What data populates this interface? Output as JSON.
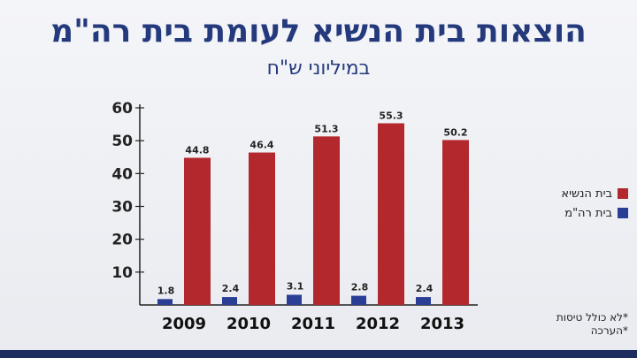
{
  "title": "הוצאות בית הנשיא לעומת בית רה\"מ",
  "subtitle": "במיליוני ש\"ח",
  "colors": {
    "primary_series": "#b3282d",
    "secondary_series": "#2b3e96",
    "text": "#253a7c"
  },
  "legend": [
    {
      "label": "בית הנשיא",
      "color": "#b3282d"
    },
    {
      "label": "בית רה\"מ",
      "color": "#2b3e96"
    }
  ],
  "notes": [
    "*לא כולל טיסות",
    "*הערכה"
  ],
  "chart_data": {
    "type": "bar",
    "categories": [
      "2009",
      "2010",
      "2011",
      "2012",
      "2013"
    ],
    "series": [
      {
        "name": "בית רה\"מ",
        "values": [
          1.8,
          2.4,
          3.1,
          2.8,
          2.4
        ]
      },
      {
        "name": "בית הנשיא",
        "values": [
          44.8,
          46.4,
          51.3,
          55.3,
          50.2
        ]
      }
    ],
    "data_labels": {
      "secondary": [
        "1.8",
        "2.4",
        "3.1",
        "2.8",
        "2.4"
      ],
      "primary": [
        "44.8",
        "46.4",
        "51.3",
        "55.3",
        "50.2"
      ]
    },
    "yticks": [
      10,
      20,
      30,
      40,
      50,
      60
    ],
    "ylim": [
      0,
      60
    ],
    "grid": false,
    "legend_position": "right"
  }
}
